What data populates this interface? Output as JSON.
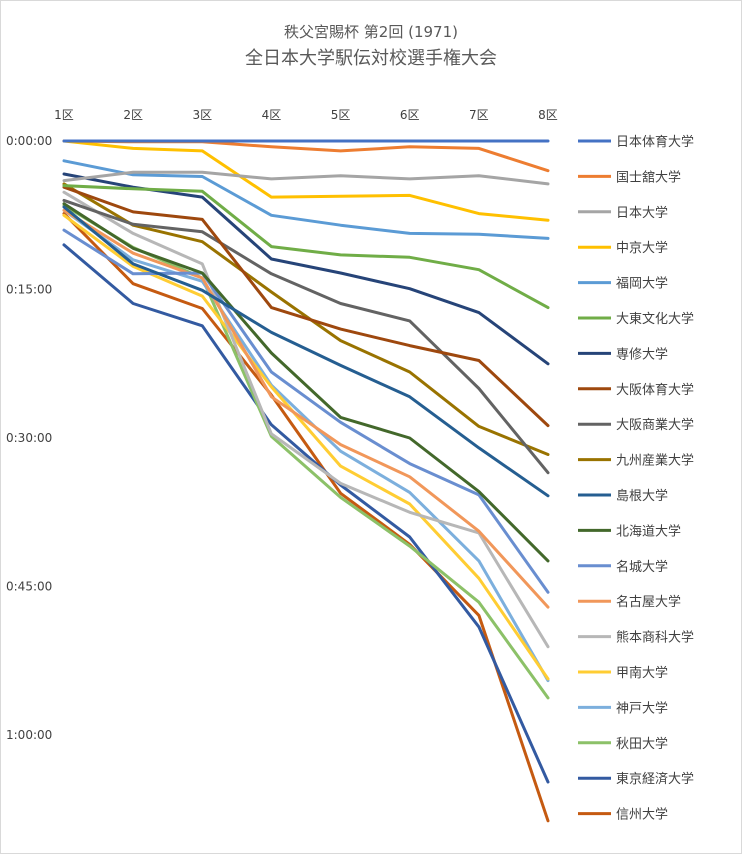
{
  "chart_data": {
    "type": "line",
    "title": "秩父宮賜杯 第2回 (1971)",
    "subtitle": "全日本大学駅伝対校選手権大会",
    "categories": [
      "1区",
      "2区",
      "3区",
      "4区",
      "5区",
      "6区",
      "7区",
      "8区"
    ],
    "y_ticks": [
      "0:00:00",
      "0:15:00",
      "0:30:00",
      "0:45:00",
      "1:00:00"
    ],
    "y_unit": "seconds behind leader",
    "ylim_seconds": [
      0,
      4080
    ],
    "y_axis_inverted": true,
    "grid": false,
    "legend_position": "right",
    "series": [
      {
        "name": "日本体育大学",
        "color": "#4472C4",
        "values": [
          0,
          0,
          0,
          0,
          0,
          0,
          0,
          0
        ]
      },
      {
        "name": "国士舘大学",
        "color": "#ED7D31",
        "values": [
          0,
          5,
          5,
          35,
          60,
          35,
          45,
          180
        ]
      },
      {
        "name": "日本大学",
        "color": "#A5A5A5",
        "values": [
          240,
          190,
          190,
          230,
          210,
          230,
          210,
          260
        ]
      },
      {
        "name": "中京大学",
        "color": "#FFC000",
        "values": [
          0,
          45,
          60,
          340,
          335,
          330,
          440,
          480
        ]
      },
      {
        "name": "福岡大学",
        "color": "#5B9BD5",
        "values": [
          120,
          205,
          215,
          450,
          510,
          560,
          565,
          590
        ]
      },
      {
        "name": "大東文化大学",
        "color": "#70AD47",
        "values": [
          270,
          290,
          305,
          640,
          690,
          705,
          780,
          1010
        ]
      },
      {
        "name": "専修大学",
        "color": "#264478",
        "values": [
          200,
          280,
          340,
          715,
          800,
          895,
          1040,
          1350
        ]
      },
      {
        "name": "大阪体育大学",
        "color": "#9E480E",
        "values": [
          280,
          430,
          475,
          1010,
          1140,
          1240,
          1330,
          1725
        ]
      },
      {
        "name": "大阪商業大学",
        "color": "#636363",
        "values": [
          360,
          505,
          550,
          805,
          985,
          1090,
          1500,
          2010
        ]
      },
      {
        "name": "九州産業大学",
        "color": "#997300",
        "values": [
          260,
          510,
          610,
          915,
          1210,
          1400,
          1730,
          1900
        ]
      },
      {
        "name": "島根大学",
        "color": "#255E91",
        "values": [
          400,
          745,
          905,
          1160,
          1360,
          1550,
          1860,
          2150
        ]
      },
      {
        "name": "北海道大学",
        "color": "#43682B",
        "values": [
          380,
          650,
          800,
          1285,
          1675,
          1800,
          2125,
          2545
        ]
      },
      {
        "name": "名城大学",
        "color": "#698ED0",
        "values": [
          540,
          805,
          800,
          1400,
          1705,
          1955,
          2145,
          2735
        ]
      },
      {
        "name": "名古屋大学",
        "color": "#F1975A",
        "values": [
          420,
          680,
          830,
          1550,
          1840,
          2035,
          2365,
          2825
        ]
      },
      {
        "name": "熊本商科大学",
        "color": "#B7B7B7",
        "values": [
          310,
          560,
          745,
          1775,
          2075,
          2250,
          2375,
          3065
        ]
      },
      {
        "name": "甲南大学",
        "color": "#FFCD33",
        "values": [
          450,
          760,
          940,
          1490,
          1970,
          2200,
          2650,
          3260
        ]
      },
      {
        "name": "神戸大学",
        "color": "#7CAFDD",
        "values": [
          420,
          720,
          850,
          1480,
          1880,
          2130,
          2545,
          3270
        ]
      },
      {
        "name": "秋田大学",
        "color": "#8CC168",
        "values": [
          390,
          645,
          830,
          1790,
          2160,
          2455,
          2795,
          3375
        ]
      },
      {
        "name": "東京経済大学",
        "color": "#335AA1",
        "values": [
          630,
          985,
          1120,
          1720,
          2085,
          2400,
          2945,
          3885
        ]
      },
      {
        "name": "信州大学",
        "color": "#C55A11",
        "values": [
          440,
          865,
          1015,
          1540,
          2135,
          2445,
          2875,
          4120
        ]
      }
    ]
  }
}
